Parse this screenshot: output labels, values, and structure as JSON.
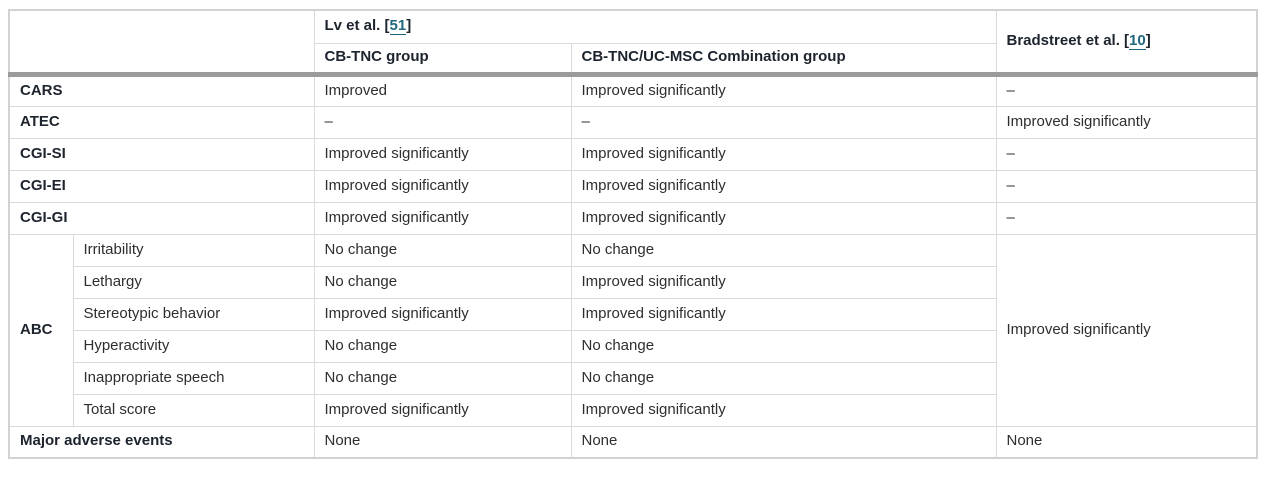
{
  "colors": {
    "teal_rule": "#143c4d",
    "link_teal": "#20667f",
    "thick_separator_gray": "#9b9b9b",
    "cell_border_gray": "#dadada",
    "outer_border_gray": "#d2d2d2",
    "header_text": "#1d242e",
    "body_text": "#2e2e2e"
  },
  "table": {
    "header": {
      "study1_prefix": "Lv et al. [",
      "study1_ref": "51",
      "study1_suffix": "]",
      "group1": "CB-TNC group",
      "group2": "CB-TNC/UC-MSC Combination group",
      "study2_prefix": "Bradstreet et al. [",
      "study2_ref": "10",
      "study2_suffix": "]"
    },
    "rows": [
      {
        "label": "CARS",
        "cells": [
          "Improved",
          "Improved significantly",
          "–"
        ]
      },
      {
        "label": "ATEC",
        "cells": [
          "–",
          "–",
          "Improved significantly"
        ]
      },
      {
        "label": "CGI-SI",
        "cells": [
          "Improved significantly",
          "Improved significantly",
          "–"
        ]
      },
      {
        "label": "CGI-EI",
        "cells": [
          "Improved significantly",
          "Improved significantly",
          "–"
        ]
      },
      {
        "label": "CGI-GI",
        "cells": [
          "Improved significantly",
          "Improved significantly",
          "–"
        ]
      }
    ],
    "abc": {
      "label": "ABC",
      "bradstreet": "Improved significantly",
      "subrows": [
        {
          "label": "Irritability",
          "cells": [
            "No change",
            "No change"
          ]
        },
        {
          "label": "Lethargy",
          "cells": [
            "No change",
            "Improved significantly"
          ]
        },
        {
          "label": "Stereotypic behavior",
          "cells": [
            "Improved significantly",
            "Improved significantly"
          ]
        },
        {
          "label": "Hyperactivity",
          "cells": [
            "No change",
            "No change"
          ]
        },
        {
          "label": "Inappropriate speech",
          "cells": [
            "No change",
            "No change"
          ]
        },
        {
          "label": "Total score",
          "cells": [
            "Improved significantly",
            "Improved significantly"
          ]
        }
      ]
    },
    "footer_row": {
      "label": "Major adverse events",
      "cells": [
        "None",
        "None",
        "None"
      ]
    }
  }
}
